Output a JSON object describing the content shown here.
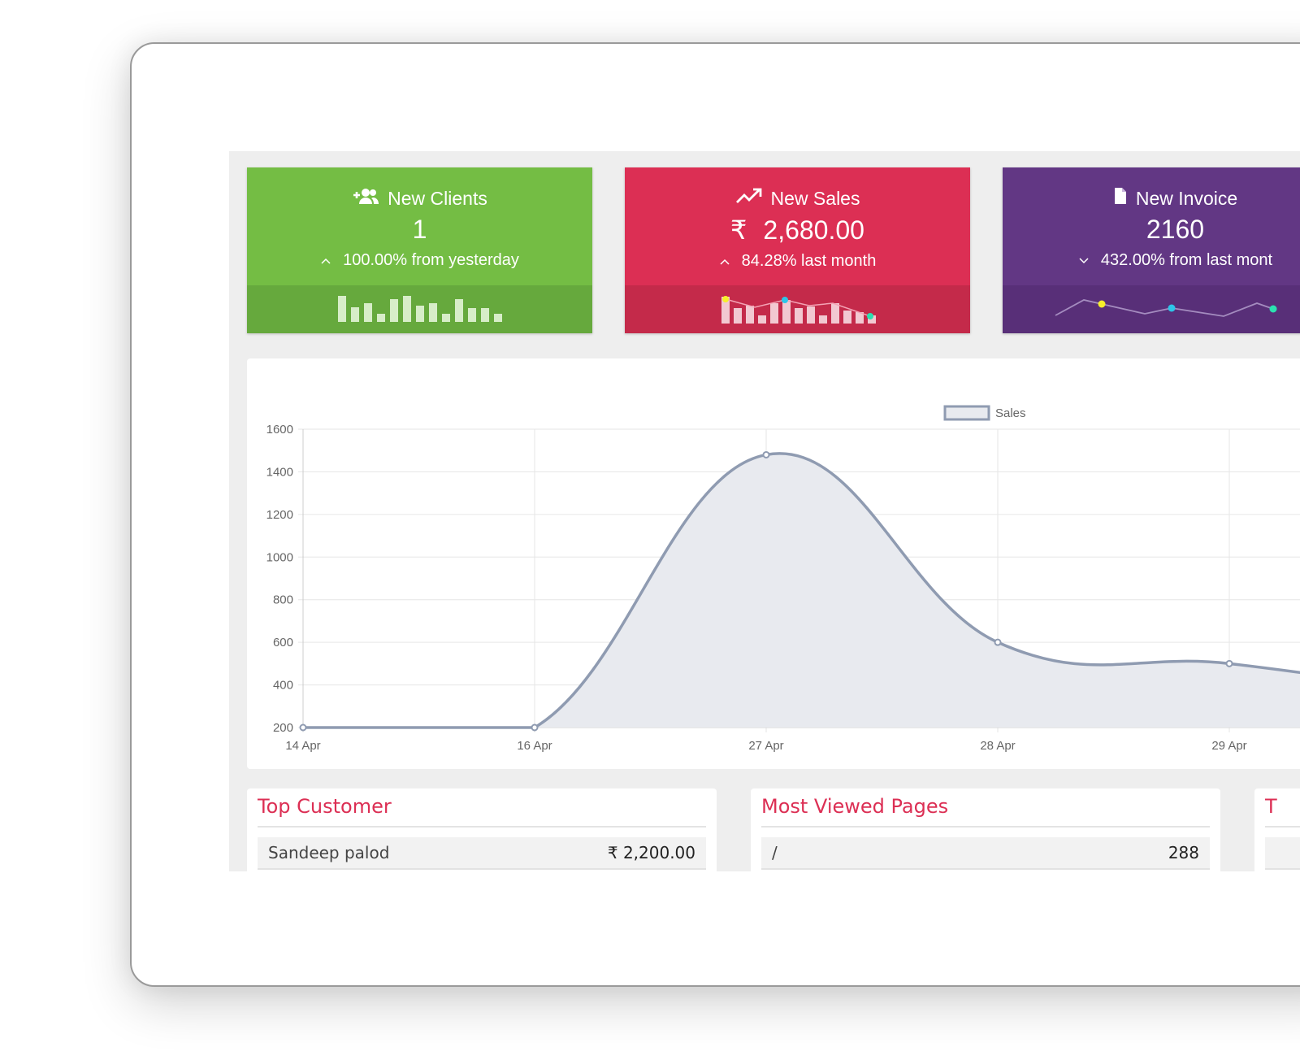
{
  "cards": [
    {
      "title": "New Clients",
      "icon": "user-plus-icon",
      "value": "1",
      "change": "100.00% from yesterday",
      "direction": "up",
      "color": "#74bd44"
    },
    {
      "title": "New Sales",
      "icon": "trending-up-icon",
      "currency": "₹",
      "value": "2,680.00",
      "change": "84.28% last month",
      "direction": "up",
      "color": "#dc2f54"
    },
    {
      "title": "New Invoice",
      "icon": "file-icon",
      "value": "2160",
      "change": "432.00% from last mont",
      "direction": "down",
      "color": "#623784"
    }
  ],
  "chart_data": {
    "type": "area",
    "legend": [
      "Sales"
    ],
    "legend_position": "top-center",
    "x": [
      "14 Apr",
      "16 Apr",
      "27 Apr",
      "28 Apr",
      "29 Apr"
    ],
    "series": [
      {
        "name": "Sales",
        "values": [
          200,
          200,
          1480,
          600,
          500
        ]
      }
    ],
    "ylim": [
      200,
      1600
    ],
    "yticks": [
      200,
      400,
      600,
      800,
      1000,
      1200,
      1400,
      1600
    ],
    "grid": true,
    "color": "#8f9bb1",
    "fill": "#e8eaef"
  },
  "panels": [
    {
      "title": "Top Customer",
      "row_label": "Sandeep palod",
      "currency": "₹",
      "row_value": "2,200.00"
    },
    {
      "title": "Most Viewed Pages",
      "row_label": "/",
      "row_value": "288"
    },
    {
      "title": "T"
    }
  ]
}
